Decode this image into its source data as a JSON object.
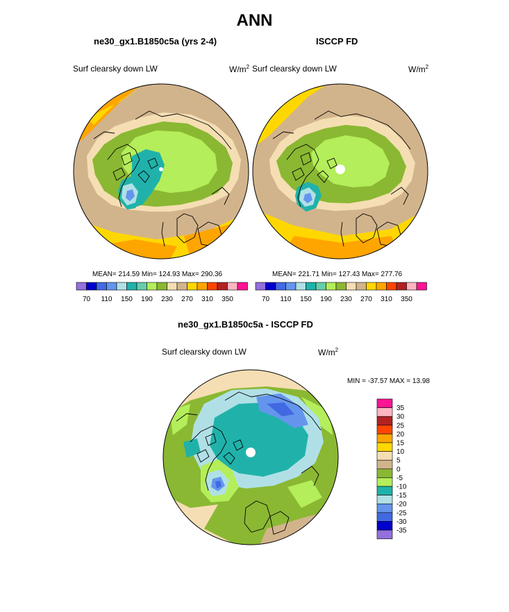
{
  "title": "ANN",
  "panels": [
    {
      "id": "model",
      "title": "ne30_gx1.B1850c5a (yrs 2-4)",
      "variable": "Surf clearsky down LW",
      "units": "W/m",
      "units_sup": "2",
      "stats": "MEAN= 214.59  Min= 124.93  Max= 290.36"
    },
    {
      "id": "obs",
      "title": "ISCCP FD",
      "variable": "Surf clearsky down LW",
      "units": "W/m",
      "units_sup": "2",
      "stats": "MEAN= 221.71  Min= 127.43  Max= 277.76"
    },
    {
      "id": "diff",
      "title": "ne30_gx1.B1850c5a - ISCCP FD",
      "variable": "Surf clearsky down LW",
      "units": "W/m",
      "units_sup": "2",
      "stats": "MIN = -37.57 MAX =  13.98"
    }
  ],
  "colorbar_abs": {
    "colors": [
      "#9370DB",
      "#0000CD",
      "#4169E1",
      "#6495ED",
      "#B0E0E6",
      "#20B2AA",
      "#66CDAA",
      "#B4EE5A",
      "#8AB833",
      "#F5DEB3",
      "#D2B48C",
      "#FFD700",
      "#FFA500",
      "#FF4500",
      "#B22222",
      "#FFB6C1",
      "#FF1493"
    ],
    "tick_labels": [
      "70",
      "110",
      "150",
      "190",
      "230",
      "270",
      "310",
      "350"
    ]
  },
  "colorbar_diff": {
    "colors": [
      "#FF1493",
      "#FFB6C1",
      "#B22222",
      "#FF4500",
      "#FFA500",
      "#FFD700",
      "#F5DEB3",
      "#D2B48C",
      "#8AB833",
      "#B4EE5A",
      "#20B2AA",
      "#B0E0E6",
      "#6495ED",
      "#4169E1",
      "#0000CD",
      "#9370DB"
    ],
    "tick_labels": [
      "35",
      "30",
      "25",
      "20",
      "15",
      "10",
      "5",
      "0",
      "-5",
      "-10",
      "-15",
      "-20",
      "-25",
      "-30",
      "-35"
    ]
  }
}
